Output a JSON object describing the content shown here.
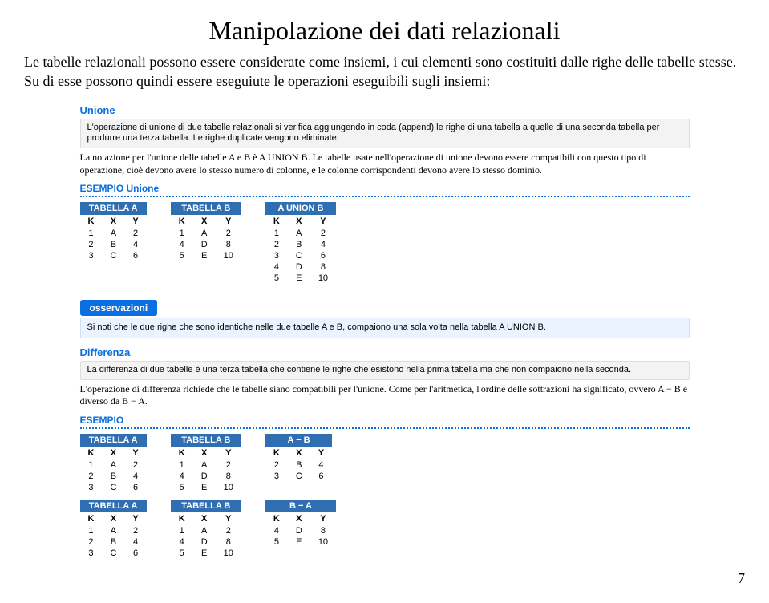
{
  "title": "Manipolazione dei dati relazionali",
  "intro": "Le tabelle relazionali possono essere considerate come insiemi, i cui elementi sono costituiti dalle righe delle tabelle stesse. Su di esse possono quindi essere eseguiute le operazioni eseguibili sugli insiemi:",
  "unione": {
    "head": "Unione",
    "def": "L'operazione di unione di due tabelle relazionali si verifica aggiungendo in coda (append) le righe di una tabella a quelle di una seconda tabella per produrre una terza tabella. Le righe duplicate vengono eliminate.",
    "note": "La notazione per l'unione delle tabelle A e B è A UNION B.\nLe tabelle usate nell'operazione di unione devono essere compatibili con questo tipo di operazione, cioè devono avere lo stesso numero di colonne, e le colonne corrispondenti devono avere lo stesso dominio."
  },
  "esempio_unione_label": "ESEMPIO Unione",
  "tabA": {
    "cap": "TABELLA A",
    "cols": [
      "K",
      "X",
      "Y"
    ],
    "rows": [
      [
        "1",
        "A",
        "2"
      ],
      [
        "2",
        "B",
        "4"
      ],
      [
        "3",
        "C",
        "6"
      ]
    ]
  },
  "tabB": {
    "cap": "TABELLA B",
    "cols": [
      "K",
      "X",
      "Y"
    ],
    "rows": [
      [
        "1",
        "A",
        "2"
      ],
      [
        "4",
        "D",
        "8"
      ],
      [
        "5",
        "E",
        "10"
      ]
    ]
  },
  "tabUnion": {
    "cap": "A UNION B",
    "cols": [
      "K",
      "X",
      "Y"
    ],
    "rows": [
      [
        "1",
        "A",
        "2"
      ],
      [
        "2",
        "B",
        "4"
      ],
      [
        "3",
        "C",
        "6"
      ],
      [
        "4",
        "D",
        "8"
      ],
      [
        "5",
        "E",
        "10"
      ]
    ]
  },
  "oss_label": "osservazioni",
  "oss_text": "Si noti che le due righe che sono identiche nelle due tabelle A e B, compaiono una sola volta nella tabella A UNION B.",
  "diff": {
    "head": "Differenza",
    "def": "La differenza di due tabelle è una terza tabella che contiene le righe che esistono nella prima tabella ma che non compaiono nella seconda.",
    "note": "L'operazione di differenza richiede che le tabelle siano compatibili per l'unione. Come per l'aritmetica, l'ordine delle sottrazioni ha significato, ovvero A − B è diverso da B − A."
  },
  "esempio_label": "ESEMPIO",
  "tabAmB": {
    "cap": "A − B",
    "cols": [
      "K",
      "X",
      "Y"
    ],
    "rows": [
      [
        "2",
        "B",
        "4"
      ],
      [
        "3",
        "C",
        "6"
      ]
    ]
  },
  "tabBmA": {
    "cap": "B − A",
    "cols": [
      "K",
      "X",
      "Y"
    ],
    "rows": [
      [
        "4",
        "D",
        "8"
      ],
      [
        "5",
        "E",
        "10"
      ]
    ]
  },
  "pagenum": "7"
}
